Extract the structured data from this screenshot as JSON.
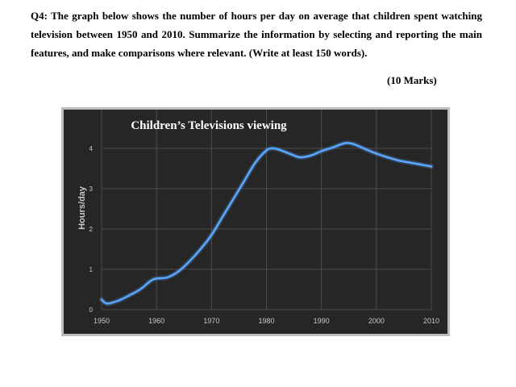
{
  "question": {
    "text": "Q4: The graph below shows the number of hours per day on average that children spent watching television between 1950 and 2010. Summarize the information by selecting and reporting the main features, and make comparisons where relevant. (Write at least 150 words).",
    "marks": "(10 Marks)"
  },
  "colors": {
    "chart_background": "#262626",
    "grid": "#4a4a4a",
    "line": "#5aa8ff",
    "axis_text": "#c8c8c8"
  },
  "chart_data": {
    "type": "line",
    "title": "Children’s Televisions viewing",
    "xlabel": "",
    "ylabel": "Hours/day",
    "xlim": [
      1950,
      2010
    ],
    "ylim": [
      0,
      4
    ],
    "xticks": [
      "1950",
      "1960",
      "1970",
      "1980",
      "1990",
      "2000",
      "2010"
    ],
    "yticks": [
      "0",
      "1",
      "2",
      "3",
      "4"
    ],
    "grid": true,
    "series": [
      {
        "x": [
          1950,
          1951,
          1953,
          1955,
          1957,
          1959,
          1960,
          1962,
          1964,
          1966,
          1968,
          1970,
          1972,
          1974,
          1976,
          1978,
          1980,
          1981,
          1982,
          1984,
          1986,
          1988,
          1990,
          1992,
          1994,
          1995,
          1996,
          1998,
          2000,
          2002,
          2004,
          2006,
          2008,
          2010
        ],
        "y": [
          0.25,
          0.15,
          0.22,
          0.35,
          0.5,
          0.72,
          0.77,
          0.8,
          0.95,
          1.2,
          1.5,
          1.85,
          2.3,
          2.75,
          3.2,
          3.65,
          3.95,
          4.0,
          3.98,
          3.88,
          3.78,
          3.82,
          3.93,
          4.02,
          4.12,
          4.13,
          4.1,
          3.98,
          3.87,
          3.78,
          3.7,
          3.65,
          3.6,
          3.55
        ]
      }
    ]
  }
}
